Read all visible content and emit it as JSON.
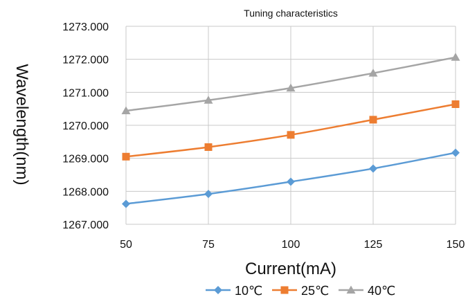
{
  "chart_data": {
    "type": "line",
    "title": "Tuning characteristics",
    "xlabel": "Current(mA)",
    "ylabel": "Wavelength(nm)",
    "x": [
      50,
      75,
      100,
      125,
      150
    ],
    "x_tick_labels": [
      "50",
      "75",
      "100",
      "125",
      "150"
    ],
    "ylim": [
      1267.0,
      1273.0
    ],
    "y_tick_labels": [
      "1267.000",
      "1268.000",
      "1269.000",
      "1270.000",
      "1271.000",
      "1272.000",
      "1273.000"
    ],
    "y_ticks": [
      1267,
      1268,
      1269,
      1270,
      1271,
      1272,
      1273
    ],
    "grid": true,
    "legend_position": "bottom",
    "series": [
      {
        "name": "10℃",
        "color": "#5b9bd5",
        "marker": "diamond",
        "values": [
          1267.62,
          1267.92,
          1268.29,
          1268.69,
          1269.17
        ]
      },
      {
        "name": "25℃",
        "color": "#ed7d31",
        "marker": "square",
        "values": [
          1269.05,
          1269.34,
          1269.71,
          1270.17,
          1270.64
        ]
      },
      {
        "name": "40℃",
        "color": "#a5a5a5",
        "marker": "triangle",
        "values": [
          1270.44,
          1270.76,
          1271.13,
          1271.58,
          1272.06
        ]
      }
    ]
  }
}
